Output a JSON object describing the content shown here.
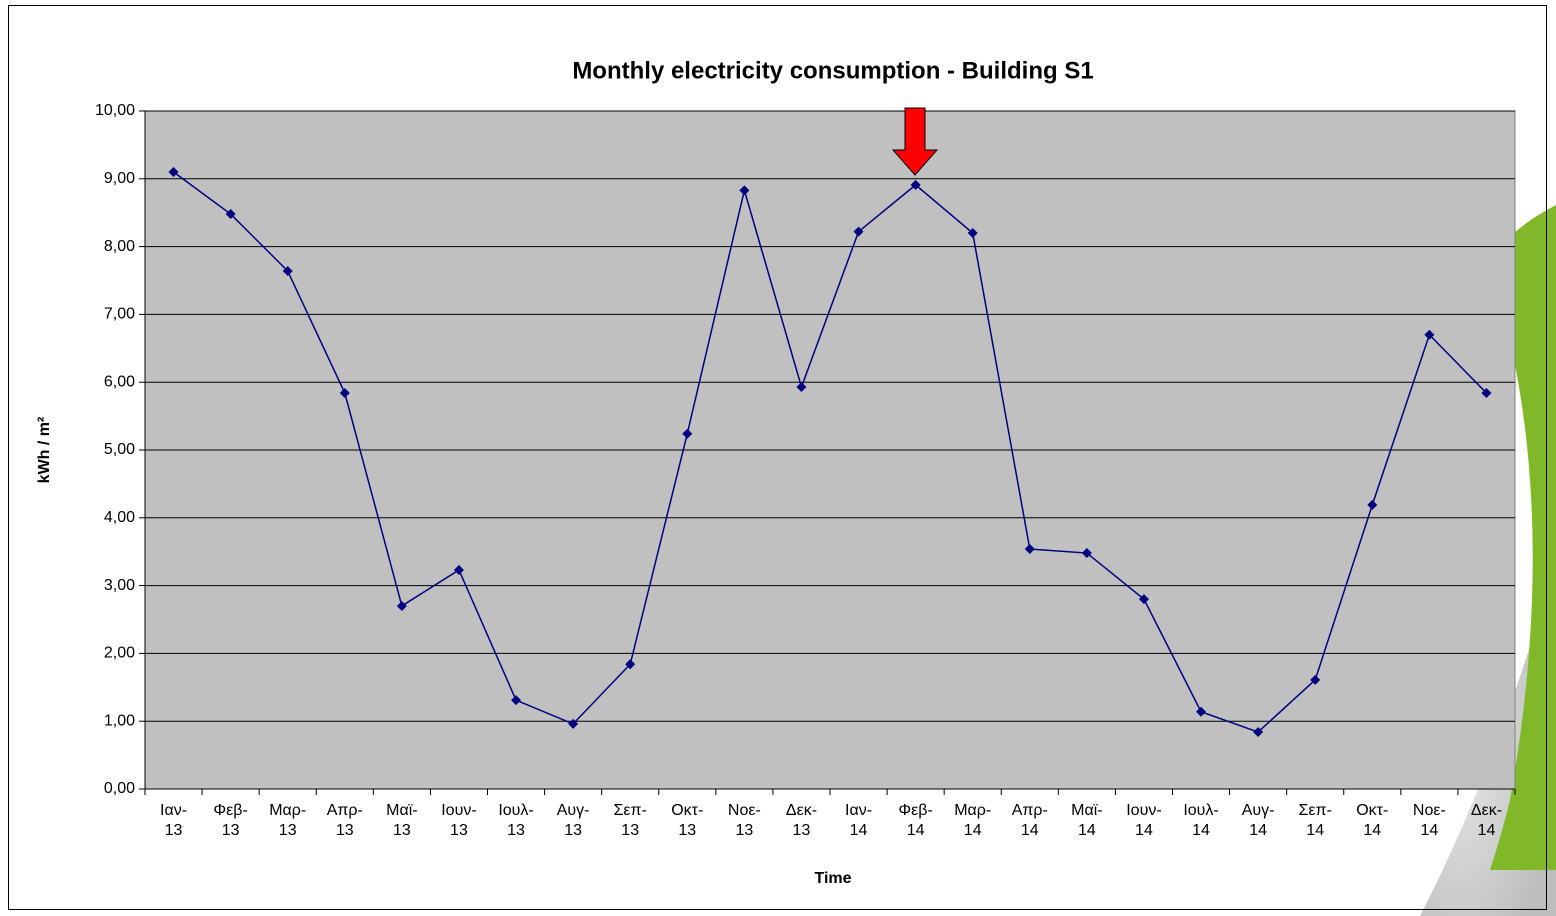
{
  "chart_data": {
    "type": "line",
    "title": "Monthly electricity consumption - Building S1",
    "x_label": "Time",
    "y_label": "kWh / m²",
    "categories": [
      "Ιαν-13",
      "Φεβ-13",
      "Μαρ-13",
      "Απρ-13",
      "Μαϊ-13",
      "Ιουν-13",
      "Ιουλ-13",
      "Αυγ-13",
      "Σεπ-13",
      "Οκτ-13",
      "Νοε-13",
      "Δεκ-13",
      "Ιαν-14",
      "Φεβ-14",
      "Μαρ-14",
      "Απρ-14",
      "Μαϊ-14",
      "Ιουν-14",
      "Ιουλ-14",
      "Αυγ-14",
      "Σεπ-14",
      "Οκτ-14",
      "Νοε-14",
      "Δεκ-14"
    ],
    "values": [
      9.1,
      8.48,
      7.64,
      5.84,
      2.7,
      3.23,
      1.31,
      0.96,
      1.84,
      5.24,
      8.83,
      5.93,
      8.22,
      8.91,
      8.2,
      3.54,
      3.48,
      2.8,
      1.14,
      0.84,
      1.61,
      4.19,
      6.7,
      5.84
    ],
    "color": "#000080",
    "ylim": [
      0,
      10
    ],
    "yticks": [
      {
        "value": 0,
        "label": "0,00"
      },
      {
        "value": 1,
        "label": "1,00"
      },
      {
        "value": 2,
        "label": "2,00"
      },
      {
        "value": 3,
        "label": "3,00"
      },
      {
        "value": 4,
        "label": "4,00"
      },
      {
        "value": 5,
        "label": "5,00"
      },
      {
        "value": 6,
        "label": "6,00"
      },
      {
        "value": 7,
        "label": "7,00"
      },
      {
        "value": 8,
        "label": "8,00"
      },
      {
        "value": 9,
        "label": "9,00"
      },
      {
        "value": 10,
        "label": "10,00"
      }
    ],
    "grid": true,
    "plot_background": "#c0c0c0"
  }
}
